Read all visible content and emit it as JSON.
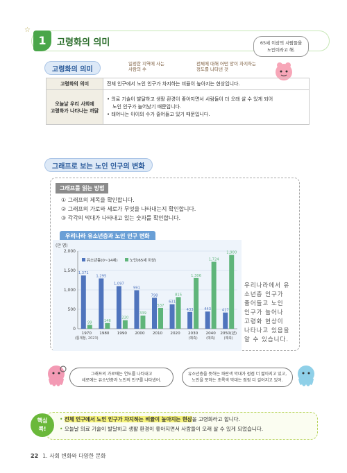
{
  "section": {
    "number": "1",
    "title": "고령화의 의미"
  },
  "top_bubble": {
    "line1": "65세 이상의 사람들을",
    "line2": "노인이라고 해."
  },
  "meaning": {
    "pill": "고령화의 의미",
    "note1_line1": "일정한 지역에 사는",
    "note1_line2": "사람의 수",
    "note2_line1": "전체에 대해 어떤 양이 차지하는",
    "note2_line2": "정도를 나타낸 것",
    "row1_head": "고령화의 의미",
    "row1_text": "전체 인구에서 노인 인구가 차지하는 비율이 높아지는 현상입니다.",
    "row2_head_line1": "오늘날 우리 사회에",
    "row2_head_line2": "고령화가 나타나는 까닭",
    "row2_b1_line1": "의료 기술이 발달하고 생활 환경이 좋아지면서 사람들이 더 오래 살 수 있게 되어",
    "row2_b1_line2": "노인 인구가 늘어났기 때문입니다.",
    "row2_b2": "태어나는 아이의 수가 줄어들고 있기 때문입니다."
  },
  "graph_section": {
    "pill": "그래프로 보는 노인 인구의 변화",
    "how_to_head": "그래프를 읽는 방법",
    "steps": [
      "① 그래프의 제목을 확인합니다.",
      "② 그래프의 가로와 세로가 무엇을 나타내는지 확인합니다.",
      "③ 각각의 막대가 나타내고 있는 숫자를 확인합니다."
    ],
    "side_text": [
      "우리나라에서 유",
      "소년층 인구가",
      "줄어들고 노인",
      "인구가 늘어나",
      "고령화 현상이",
      "나타나고 있음을",
      "알 수 있습니다."
    ]
  },
  "chart_data": {
    "type": "bar",
    "title": "우리나라 유소년층과 노인 인구 변화",
    "unit_label": "(만 명)",
    "ylim": [
      0,
      2000
    ],
    "yticks": [
      "0",
      "500",
      "1,000",
      "1,500",
      "2,000"
    ],
    "categories": [
      "1970",
      "1980",
      "1990",
      "2000",
      "2010",
      "2020",
      "2030",
      "2040",
      "2050(년)"
    ],
    "category_notes": [
      "(통계청, 2023)",
      "",
      "",
      "",
      "",
      "",
      "(예측)",
      "(예측)",
      "(예측)"
    ],
    "series": [
      {
        "name": "유소년층(0~14세)",
        "color": "#4f74bd",
        "values": [
          1371,
          1295,
          1097,
          991,
          798,
          631,
          433,
          443,
          417
        ],
        "labels": [
          "1,371",
          "1,295",
          "1,097",
          "991",
          "798",
          "631",
          "433",
          "443",
          "417"
        ]
      },
      {
        "name": "노인(65세 이상)",
        "color": "#5fb57a",
        "values": [
          99,
          146,
          220,
          339,
          537,
          815,
          1306,
          1724,
          1900
        ],
        "labels": [
          "99",
          "146",
          "220",
          "339",
          "537",
          "815",
          "1,306",
          "1,724",
          "1,900"
        ]
      }
    ]
  },
  "speech": {
    "left_line1": "그래프의 가로에는 연도를 나타내고",
    "left_line2": "세로에는 유소년층과 노인의 인구를 나타냈어.",
    "right_line1": "유소년층을 뜻하는 파란색 막대가 점점 더 짧아지고 있고,",
    "right_line2": "노인을 뜻하는 초록색 막대는 점점 더 길어지고 있어."
  },
  "core": {
    "badge_line1": "핵심",
    "badge_line2": "콕!",
    "b1_highlight": "전체 인구에서 노인 인구가 차지하는 비율이 높아지는 현상",
    "b1_rest": "을 고령화라고 합니다.",
    "b2": "오늘날 의료 기술이 발달하고 생활 환경이 좋아지면서 사람들이 오래 살 수 있게 되었습니다."
  },
  "footer": {
    "page": "22",
    "chapter": "1. 사회 변화와 다양한 문화"
  },
  "colors": {
    "green": "#4aa64a",
    "blue_bar": "#4f74bd",
    "green_bar": "#5fb57a"
  }
}
